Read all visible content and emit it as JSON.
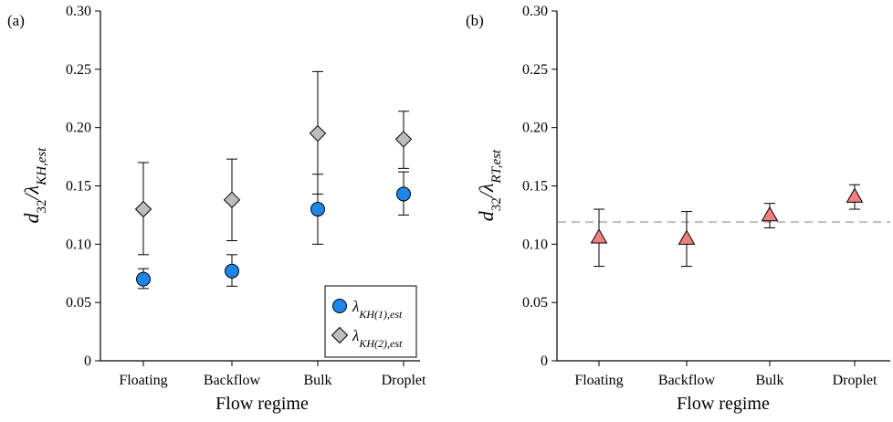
{
  "chart_data": [
    {
      "type": "scatter",
      "panel_label": "(a)",
      "categories": [
        "Floating",
        "Backflow",
        "Bulk",
        "Droplet"
      ],
      "xlabel": "Flow regime",
      "ylabel": {
        "base": "d",
        "base_sub": "32",
        "sep": "/λ",
        "sub": "KH,est"
      },
      "ylim": [
        0,
        0.3
      ],
      "yticks": [
        "0",
        "0.05",
        "0.10",
        "0.15",
        "0.20",
        "0.25",
        "0.30"
      ],
      "grid": false,
      "legend_position": "bottom-right",
      "series": [
        {
          "name": "λKH(1),est",
          "legend": {
            "sym": "λ",
            "sub": "KH(1),est"
          },
          "marker": "circle",
          "color": "#1f86e8",
          "values": [
            0.07,
            0.077,
            0.13,
            0.143
          ],
          "err_low": [
            0.062,
            0.064,
            0.1,
            0.125
          ],
          "err_high": [
            0.079,
            0.091,
            0.16,
            0.162
          ]
        },
        {
          "name": "λKH(2),est",
          "legend": {
            "sym": "λ",
            "sub": "KH(2),est"
          },
          "marker": "diamond",
          "color": "#bdbdbd",
          "values": [
            0.13,
            0.138,
            0.195,
            0.19
          ],
          "err_low": [
            0.091,
            0.103,
            0.143,
            0.165
          ],
          "err_high": [
            0.17,
            0.173,
            0.248,
            0.214
          ]
        }
      ]
    },
    {
      "type": "scatter",
      "panel_label": "(b)",
      "categories": [
        "Floating",
        "Backflow",
        "Bulk",
        "Droplet"
      ],
      "xlabel": "Flow regime",
      "ylabel": {
        "base": "d",
        "base_sub": "32",
        "sep": "/λ",
        "sub": "RT,est"
      },
      "ylim": [
        0,
        0.3
      ],
      "yticks": [
        "0",
        "0.05",
        "0.10",
        "0.15",
        "0.20",
        "0.25",
        "0.30"
      ],
      "grid": false,
      "reference_line": {
        "y": 0.119,
        "style": "dashed",
        "color": "#bfbfbf"
      },
      "series": [
        {
          "name": "λRT,est",
          "marker": "triangle",
          "color": "#f08080",
          "values": [
            0.106,
            0.105,
            0.125,
            0.141
          ],
          "err_low": [
            0.081,
            0.081,
            0.114,
            0.13
          ],
          "err_high": [
            0.13,
            0.128,
            0.135,
            0.151
          ]
        }
      ]
    }
  ]
}
